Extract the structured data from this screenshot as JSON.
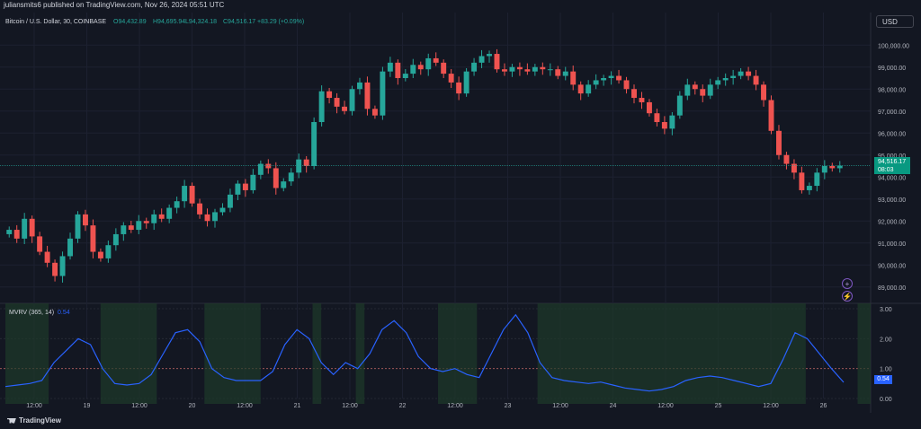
{
  "header": {
    "published_text": "juliansmits6 published on TradingView.com, Nov 26, 2024 05:51 UTC"
  },
  "symbol": {
    "title": "Bitcoin / U.S. Dollar, 30, COINBASE",
    "open": "O94,432.89",
    "high": "H94,695.94",
    "low": "L94,324.18",
    "close": "C94,516.17",
    "change": "+83.29 (+0.09%)"
  },
  "currency_button": "USD",
  "last_price": {
    "price": "94,516.17",
    "countdown": "08:03"
  },
  "indicator": {
    "name": "MVRV (365, 14)",
    "value": "0.54"
  },
  "price_axis_labels": [
    "100,000.00",
    "99,000.00",
    "98,000.00",
    "97,000.00",
    "96,000.00",
    "95,000.00",
    "94,000.00",
    "93,000.00",
    "92,000.00",
    "91,000.00",
    "90,000.00",
    "89,000.00"
  ],
  "indicator_axis_labels": [
    "3.00",
    "2.00",
    "1.00",
    "0.00"
  ],
  "time_axis_labels": [
    "12:00",
    "19",
    "12:00",
    "20",
    "12:00",
    "21",
    "12:00",
    "22",
    "12:00",
    "23",
    "12:00",
    "24",
    "12:00",
    "25",
    "12:00",
    "26"
  ],
  "footer": {
    "logo_text": "TradingView"
  },
  "colors": {
    "up": "#26a69a",
    "down": "#ef5350",
    "mvrv_line": "#2962ff",
    "band": "#1e3a2a",
    "bg": "#131722"
  },
  "chart_data": {
    "type": "candlestick",
    "symbol": "Bitcoin / U.S. Dollar",
    "interval": "30",
    "ylim": [
      88500,
      100500
    ],
    "close_series": [
      91600,
      91200,
      92100,
      91300,
      90600,
      90100,
      89500,
      90400,
      91200,
      92300,
      91800,
      90600,
      90300,
      90900,
      91400,
      91800,
      91600,
      92000,
      91900,
      92300,
      92100,
      92600,
      92900,
      93600,
      92800,
      92300,
      92000,
      92400,
      92600,
      93200,
      93700,
      93400,
      94100,
      94600,
      94400,
      93500,
      93800,
      94200,
      94800,
      94500,
      96500,
      97900,
      97600,
      97200,
      97000,
      98000,
      98300,
      97100,
      96800,
      98800,
      99200,
      98500,
      98700,
      99100,
      98900,
      99400,
      99200,
      98700,
      98300,
      97800,
      98800,
      99200,
      99500,
      99600,
      98900,
      98800,
      99000,
      98900,
      98800,
      99000,
      98900,
      98900,
      98600,
      98800,
      98200,
      97800,
      98200,
      98400,
      98500,
      98600,
      98400,
      98000,
      97600,
      97400,
      96900,
      96500,
      96200,
      96800,
      97700,
      98200,
      98000,
      97700,
      98200,
      98400,
      98500,
      98600,
      98800,
      98600,
      98200,
      97500,
      96100,
      95000,
      94600,
      94200,
      93400,
      93600,
      94200,
      94500,
      94400,
      94516
    ]
  },
  "mvrv_data": {
    "ylim": [
      0,
      3
    ],
    "series": [
      0.4,
      0.45,
      0.5,
      0.6,
      1.2,
      1.6,
      2.0,
      1.8,
      1.0,
      0.5,
      0.45,
      0.5,
      0.8,
      1.5,
      2.2,
      2.3,
      1.9,
      1.0,
      0.7,
      0.6,
      0.6,
      0.6,
      0.9,
      1.8,
      2.3,
      2.0,
      1.2,
      0.8,
      1.2,
      1.0,
      1.5,
      2.3,
      2.6,
      2.2,
      1.4,
      1.0,
      0.9,
      1.0,
      0.8,
      0.7,
      1.5,
      2.3,
      2.8,
      2.2,
      1.2,
      0.7,
      0.6,
      0.55,
      0.5,
      0.55,
      0.45,
      0.35,
      0.3,
      0.25,
      0.3,
      0.4,
      0.6,
      0.7,
      0.75,
      0.7,
      0.6,
      0.5,
      0.4,
      0.5,
      1.3,
      2.2,
      2.0,
      1.5,
      1.0,
      0.54
    ],
    "bands_fraction": [
      [
        0,
        0.05
      ],
      [
        0.11,
        0.175
      ],
      [
        0.23,
        0.295
      ],
      [
        0.355,
        0.365
      ],
      [
        0.405,
        0.415
      ],
      [
        0.5,
        0.545
      ],
      [
        0.615,
        0.925
      ],
      [
        0.985,
        1.0
      ]
    ]
  }
}
